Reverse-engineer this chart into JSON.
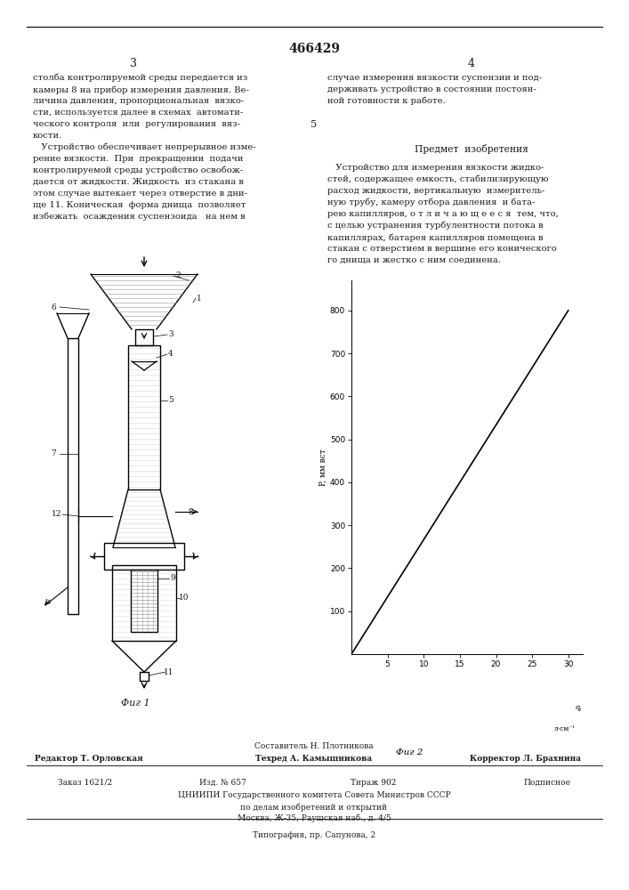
{
  "patent_number": "466429",
  "page_left": "3",
  "page_right": "4",
  "line_num_5": "5",
  "left_text": [
    "столба контролируемой среды передается из",
    "камеры 8 на прибор измерения давления. Ве-",
    "личина давления, пропорциональная  вязко-",
    "сти, используется далее в схемах  автомати-",
    "ческого контроля  или  регулирования  вяз-",
    "кости.",
    "   Устройство обеспечивает непрерывное изме-",
    "рение вязкости.  При  прекращении  подачи",
    "контролируемой среды устройство освобож-",
    "дается от жидкости. Жидкость  из стакана в",
    "этом случае вытекает через отверстие в дни-",
    "ще 11. Коническая  форма днища  позволяет",
    "избежать  осаждения суспензоида   на нем в"
  ],
  "right_text_top": [
    "случае измерения вязкости суспензии и под-",
    "держивать устройство в состоянии постоян-",
    "ной готовности к работе."
  ],
  "predmet_header": "Предмет  изобретения",
  "right_text_bottom": [
    "   Устройство для измерения вязкости жидко-",
    "стей, содержащее емкость, стабилизирующую",
    "расход жидкости, вертикальную  измеритель-",
    "ную трубу, камеру отбора давления  и бата-",
    "рею капилляров, о т л и ч а ю щ е е с я  тем, что,",
    "с целью устранения турбулентности потока в",
    "капиллярах, батарея капилляров помещена в",
    "стакан с отверстием в вершине его конического",
    "го днища и жестко с ним соединена."
  ],
  "fig1_label": "Фиг 1",
  "fig2_label": "Фиг 2",
  "graph_ylabel": "P, мм вст",
  "graph_yticks": [
    100,
    200,
    300,
    400,
    500,
    600,
    700,
    800
  ],
  "graph_xticks": [
    5,
    10,
    15,
    20,
    25,
    30
  ],
  "graph_xlabel_q": "q,",
  "graph_xlabel_units": "л·см⁻¹",
  "footer_composer": "Составитель Н. Плотникова",
  "footer_editor": "Редактор Т. Орловская",
  "footer_techred": "Техред А. Камышникова",
  "footer_corrector": "Корректор Л. Брахнина",
  "footer_order": "Заказ 1621/2",
  "footer_izd": "Изд. № 657",
  "footer_tirazh": "Тираж 902",
  "footer_podpisnoe": "Подписное",
  "footer_org1": "ЦНИИПИ Государственного комитета Совета Министров СССР",
  "footer_org2": "по делам изобретений и открытий",
  "footer_addr": "Москва, Ж-35, Раушская наб., д. 4/5",
  "footer_tip": "Типография, пр. Сапунова, 2",
  "bg_color": "#ffffff",
  "text_color": "#1a1a1a",
  "font_size_body": 7.2,
  "font_size_small": 6.2,
  "font_size_footer": 6.5
}
